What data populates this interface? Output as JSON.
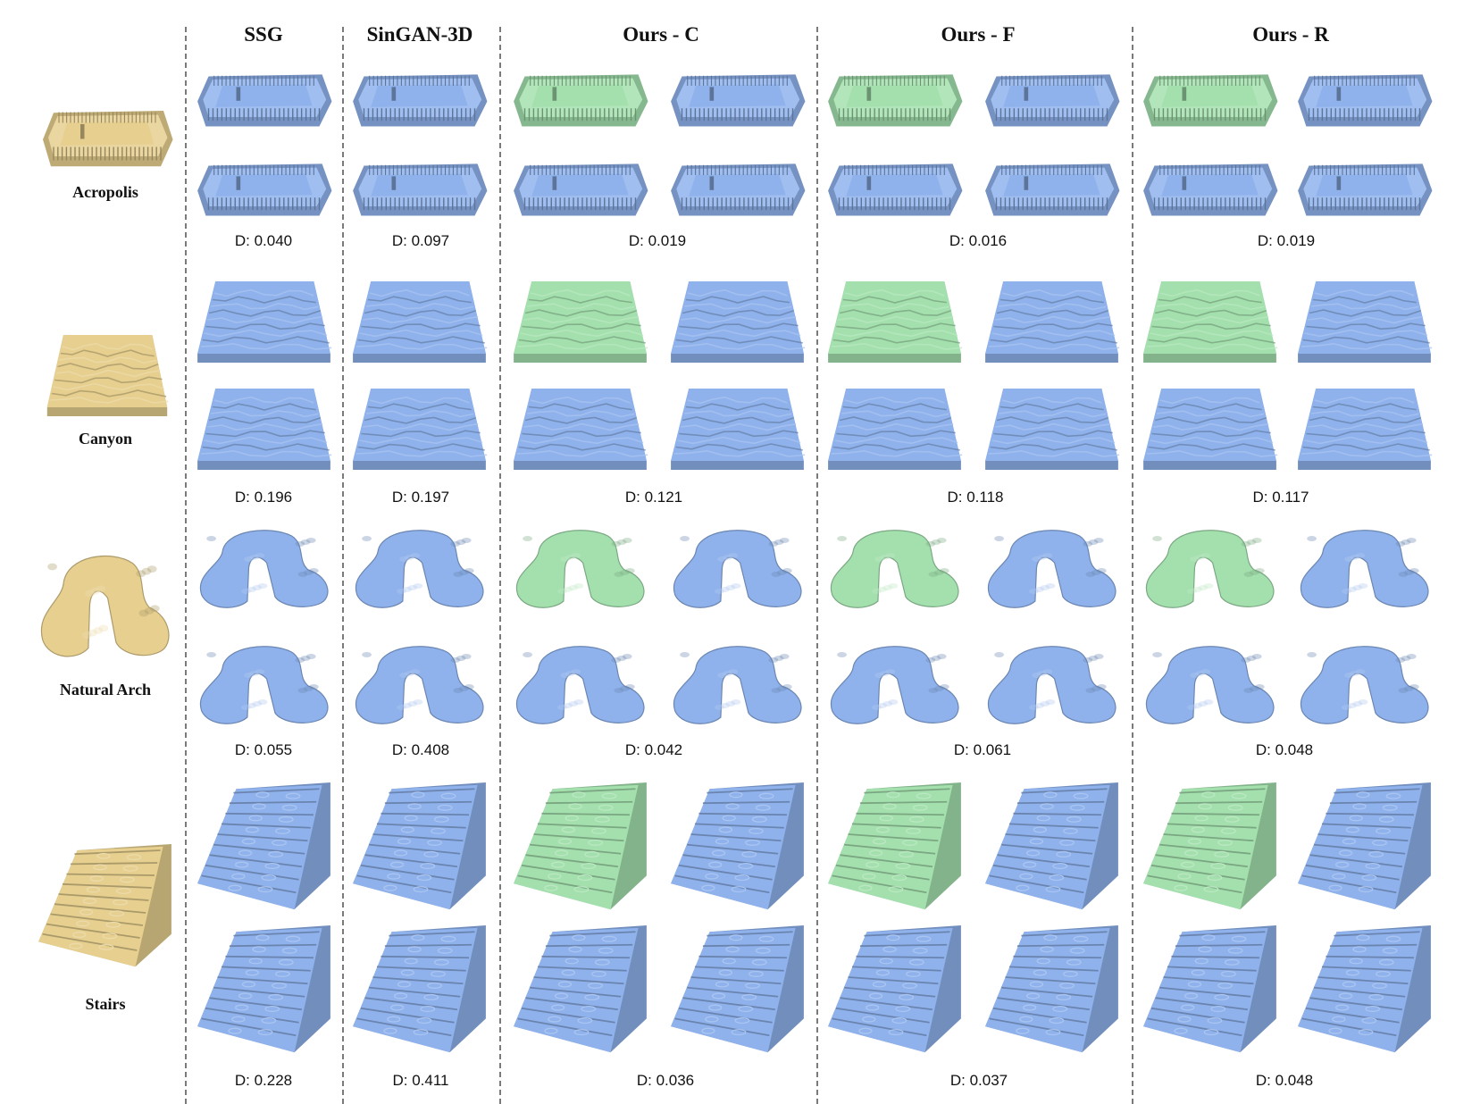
{
  "figure": {
    "columns": [
      {
        "title": "SSG"
      },
      {
        "title": "SinGAN-3D"
      },
      {
        "title": "Ours - C"
      },
      {
        "title": "Ours - F"
      },
      {
        "title": "Ours - R"
      }
    ],
    "rows": [
      {
        "label": "Acropolis",
        "shape": "acropolis",
        "metrics": [
          "D: 0.040",
          "D: 0.097",
          "D: 0.019",
          "D: 0.016",
          "D: 0.019"
        ]
      },
      {
        "label": "Canyon",
        "shape": "canyon",
        "metrics": [
          "D: 0.196",
          "D: 0.197",
          "D: 0.121",
          "D: 0.118",
          "D: 0.117"
        ]
      },
      {
        "label": "Natural Arch",
        "shape": "arch",
        "metrics": [
          "D: 0.055",
          "D: 0.408",
          "D: 0.042",
          "D: 0.061",
          "D: 0.048"
        ]
      },
      {
        "label": "Stairs",
        "shape": "stairs",
        "metrics": [
          "D: 0.228",
          "D: 0.411",
          "D: 0.036",
          "D: 0.037",
          "D: 0.048"
        ]
      }
    ],
    "colors": {
      "exemplar": "#e6cf8f",
      "generated": "#8fb2ec",
      "highlighted": "#a4e0ae",
      "separator": "#7a7a7a"
    }
  }
}
